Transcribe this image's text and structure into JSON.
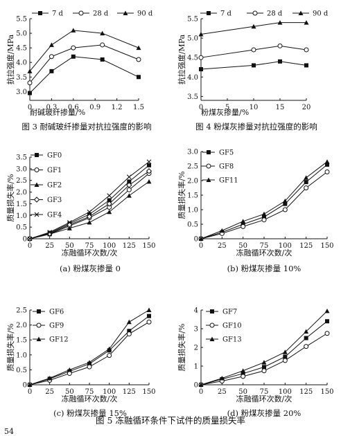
{
  "page_number": "54",
  "figure_caption": "图 5   冻融循环条件下试件的质量损失率",
  "chart_data": [
    {
      "id": "fig3",
      "type": "line",
      "caption": "图 3   耐碱玻纤掺量对抗拉强度的影响",
      "xlabel": "耐碱玻纤掺量/%",
      "ylabel": "抗拉强度/MPa",
      "x": [
        0,
        0.3,
        0.6,
        1.0,
        1.5
      ],
      "xticks": [
        0,
        0.3,
        0.6,
        0.9,
        1.2,
        1.5
      ],
      "xtick_labels": [
        "0",
        "0.3",
        "0.6",
        "0.9",
        "1.2",
        "1.5"
      ],
      "xlim": [
        0,
        1.5
      ],
      "yticks": [
        3.0,
        3.5,
        4.0,
        4.5,
        5.0,
        5.5
      ],
      "ytick_labels": [
        "3.0",
        "3.5",
        "4.0",
        "4.5",
        "5.0",
        "5.5"
      ],
      "ylim": [
        2.7,
        5.5
      ],
      "legend": "top",
      "series": [
        {
          "name": "7 d",
          "marker": "square",
          "values": [
            2.95,
            3.7,
            4.2,
            4.1,
            3.5
          ]
        },
        {
          "name": "28 d",
          "marker": "circle",
          "values": [
            3.3,
            4.2,
            4.5,
            4.6,
            4.1
          ]
        },
        {
          "name": "90 d",
          "marker": "triangle",
          "values": [
            3.7,
            4.6,
            5.1,
            5.0,
            4.5
          ]
        }
      ]
    },
    {
      "id": "fig4",
      "type": "line",
      "caption": "图 4   粉煤灰掺量对抗拉强度的影响",
      "xlabel": "粉煤灰掺量/%",
      "ylabel": "抗拉强度/MPa",
      "x": [
        0,
        10,
        15,
        20
      ],
      "xticks": [
        0,
        5,
        10,
        15,
        20
      ],
      "xtick_labels": [
        "0",
        "5",
        "10",
        "15",
        "20"
      ],
      "xlim": [
        0,
        20
      ],
      "yticks": [
        3.5,
        4.0,
        4.5,
        5.0,
        5.5
      ],
      "ytick_labels": [
        "3.5",
        "4.0",
        "4.5",
        "5.0",
        "5.5"
      ],
      "ylim": [
        3.4,
        5.5
      ],
      "legend": "top",
      "series": [
        {
          "name": "7 d",
          "marker": "square",
          "values": [
            4.2,
            4.3,
            4.4,
            4.3
          ]
        },
        {
          "name": "28 d",
          "marker": "circle",
          "values": [
            4.5,
            4.7,
            4.8,
            4.7
          ]
        },
        {
          "name": "90 d",
          "marker": "triangle",
          "values": [
            5.1,
            5.3,
            5.4,
            5.4
          ]
        }
      ]
    },
    {
      "id": "fig5a",
      "type": "line",
      "caption": "(a) 粉煤灰掺量 0",
      "xlabel": "冻融循环次数/次",
      "ylabel": "质量损失率/%",
      "x": [
        0,
        25,
        50,
        75,
        100,
        125,
        150
      ],
      "xticks": [
        0,
        25,
        50,
        75,
        100,
        125,
        150
      ],
      "xtick_labels": [
        "0",
        "25",
        "50",
        "75",
        "100",
        "125",
        "150"
      ],
      "xlim": [
        0,
        150
      ],
      "yticks": [
        0,
        0.5,
        1.0,
        1.5,
        2.0,
        2.5,
        3.0,
        3.5
      ],
      "ytick_labels": [
        "0",
        "0.5",
        "1.0",
        "1.5",
        "2.0",
        "2.5",
        "3.0",
        "3.5"
      ],
      "ylim": [
        0,
        3.5
      ],
      "legend": "left",
      "series": [
        {
          "name": "GF0",
          "marker": "square",
          "values": [
            0,
            0.25,
            0.65,
            1.05,
            1.65,
            2.45,
            3.15
          ]
        },
        {
          "name": "GF1",
          "marker": "circle",
          "values": [
            0,
            0.2,
            0.55,
            0.9,
            1.35,
            2.1,
            2.8
          ]
        },
        {
          "name": "GF2",
          "marker": "triangle",
          "values": [
            0,
            0.2,
            0.45,
            0.7,
            1.15,
            1.85,
            2.45
          ]
        },
        {
          "name": "GF3",
          "marker": "diamond",
          "values": [
            0,
            0.22,
            0.6,
            0.95,
            1.5,
            2.3,
            2.9
          ]
        },
        {
          "name": "GF4",
          "marker": "cross",
          "values": [
            0,
            0.28,
            0.7,
            1.15,
            1.85,
            2.65,
            3.3
          ]
        }
      ]
    },
    {
      "id": "fig5b",
      "type": "line",
      "caption": "(b) 粉煤灰掺量 10%",
      "xlabel": "冻融循环次数/次",
      "ylabel": "质量损失率/%",
      "x": [
        0,
        25,
        50,
        75,
        100,
        125,
        150
      ],
      "xticks": [
        0,
        25,
        50,
        75,
        100,
        125,
        150
      ],
      "xtick_labels": [
        "0",
        "25",
        "50",
        "75",
        "100",
        "125",
        "150"
      ],
      "xlim": [
        0,
        150
      ],
      "yticks": [
        0,
        0.5,
        1.0,
        1.5,
        2.0,
        2.5,
        3.0
      ],
      "ytick_labels": [
        "0",
        "0.5",
        "1.0",
        "1.5",
        "2.0",
        "2.5",
        "3.0"
      ],
      "ylim": [
        0,
        3.0
      ],
      "legend": "left",
      "series": [
        {
          "name": "GF5",
          "marker": "square",
          "values": [
            0,
            0.22,
            0.5,
            0.75,
            1.2,
            1.95,
            2.55
          ]
        },
        {
          "name": "GF8",
          "marker": "circle",
          "values": [
            0,
            0.18,
            0.42,
            0.65,
            1.0,
            1.75,
            2.3
          ]
        },
        {
          "name": "GF11",
          "marker": "triangle",
          "values": [
            0,
            0.28,
            0.6,
            0.85,
            1.3,
            2.1,
            2.65
          ]
        }
      ]
    },
    {
      "id": "fig5c",
      "type": "line",
      "caption": "(c) 粉煤灰掺量 15%",
      "xlabel": "冻融循环次数/次",
      "ylabel": "质量损失率/%",
      "x": [
        0,
        25,
        50,
        75,
        100,
        125,
        150
      ],
      "xticks": [
        0,
        25,
        50,
        75,
        100,
        125,
        150
      ],
      "xtick_labels": [
        "0",
        "25",
        "50",
        "75",
        "100",
        "125",
        "150"
      ],
      "xlim": [
        0,
        150
      ],
      "yticks": [
        0,
        0.5,
        1.0,
        1.5,
        2.0,
        2.5
      ],
      "ytick_labels": [
        "0",
        "0.5",
        "1.0",
        "1.5",
        "2.0",
        "2.5"
      ],
      "ylim": [
        0,
        2.5
      ],
      "legend": "left",
      "series": [
        {
          "name": "GF6",
          "marker": "square",
          "values": [
            0,
            0.2,
            0.45,
            0.7,
            1.15,
            1.8,
            2.3
          ]
        },
        {
          "name": "GF9",
          "marker": "circle",
          "values": [
            0,
            0.15,
            0.38,
            0.6,
            0.98,
            1.7,
            2.1
          ]
        },
        {
          "name": "GF12",
          "marker": "triangle",
          "values": [
            0,
            0.22,
            0.5,
            0.75,
            1.2,
            2.1,
            2.5
          ]
        }
      ]
    },
    {
      "id": "fig5d",
      "type": "line",
      "caption": "(d) 粉煤灰掺量 20%",
      "xlabel": "冻融循环次数/次",
      "ylabel": "质量损失率/%",
      "x": [
        0,
        25,
        50,
        75,
        100,
        125,
        150
      ],
      "xticks": [
        0,
        25,
        50,
        75,
        100,
        125,
        150
      ],
      "xtick_labels": [
        "0",
        "25",
        "50",
        "75",
        "100",
        "125",
        "150"
      ],
      "xlim": [
        0,
        150
      ],
      "yticks": [
        0,
        1,
        2,
        3,
        4
      ],
      "ytick_labels": [
        "0",
        "1",
        "2",
        "3",
        "4"
      ],
      "ylim": [
        0,
        4
      ],
      "legend": "left",
      "series": [
        {
          "name": "GF7",
          "marker": "square",
          "values": [
            0,
            0.3,
            0.6,
            0.95,
            1.5,
            2.5,
            3.4
          ]
        },
        {
          "name": "GF10",
          "marker": "circle",
          "values": [
            0,
            0.2,
            0.45,
            0.75,
            1.3,
            2.05,
            2.75
          ]
        },
        {
          "name": "GF13",
          "marker": "triangle",
          "values": [
            0,
            0.35,
            0.75,
            1.2,
            1.75,
            2.85,
            3.95
          ]
        }
      ]
    }
  ]
}
